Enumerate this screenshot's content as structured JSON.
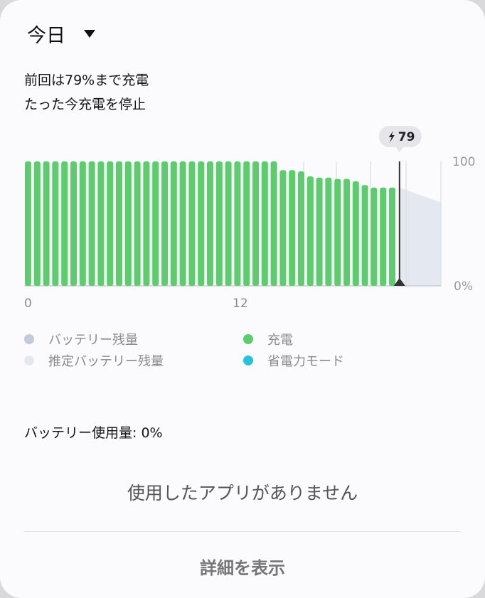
{
  "header": {
    "period_label": "今日"
  },
  "status": {
    "line1": "前回は79%まで充電",
    "line2": "たった今充電を停止"
  },
  "chart_data": {
    "type": "bar",
    "xlabels": [
      "0",
      "12"
    ],
    "ylabels": [
      "100",
      "0%"
    ],
    "ylim": [
      0,
      100
    ],
    "marker_label": "79",
    "values": [
      100,
      100,
      100,
      100,
      100,
      100,
      100,
      100,
      100,
      100,
      100,
      100,
      100,
      100,
      100,
      100,
      100,
      100,
      100,
      100,
      100,
      100,
      100,
      100,
      100,
      100,
      100,
      100,
      93,
      93,
      92,
      88,
      87,
      87,
      86,
      86,
      84,
      81,
      79,
      79,
      79
    ],
    "estimate": {
      "start": 79,
      "end": 67
    }
  },
  "legend": [
    {
      "label": "バッテリー残量",
      "color": "#c3cadb"
    },
    {
      "label": "充電",
      "color": "#5ccd6c"
    },
    {
      "label": "推定バッテリー残量",
      "color": "#e4e8f0"
    },
    {
      "label": "省電力モード",
      "color": "#23c4dc"
    }
  ],
  "usage": {
    "label": "バッテリー使用量: 0%"
  },
  "apps": {
    "empty_text": "使用したアプリがありません"
  },
  "actions": {
    "details_label": "詳細を表示"
  }
}
